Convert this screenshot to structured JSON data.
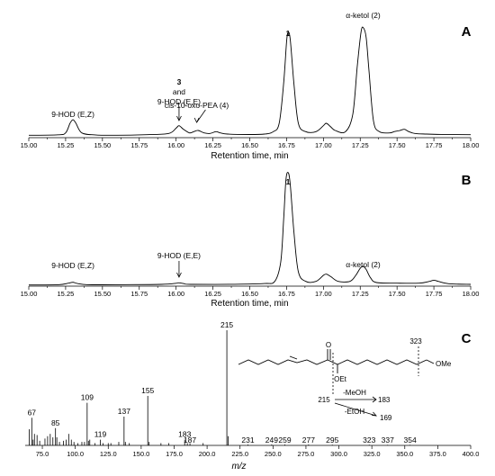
{
  "chart_data": [
    {
      "type": "line",
      "panel_label": "A",
      "xlabel": "Retention time, min",
      "xlim": [
        15.0,
        18.0
      ],
      "x_ticks": [
        "15.00",
        "15.25",
        "15.50",
        "15.75",
        "16.00",
        "16.25",
        "16.50",
        "16.75",
        "17.00",
        "17.25",
        "17.50",
        "17.75",
        "18.00"
      ],
      "ylim": [
        0,
        100
      ],
      "series": [
        {
          "points": [
            [
              15.0,
              2
            ],
            [
              15.2,
              2.4
            ],
            [
              15.25,
              4
            ],
            [
              15.28,
              12
            ],
            [
              15.3,
              15
            ],
            [
              15.32,
              12
            ],
            [
              15.36,
              4
            ],
            [
              15.45,
              2.3
            ],
            [
              15.6,
              2
            ],
            [
              15.8,
              2.5
            ],
            [
              15.95,
              3.5
            ],
            [
              16.0,
              8
            ],
            [
              16.02,
              10
            ],
            [
              16.05,
              7
            ],
            [
              16.09,
              4
            ],
            [
              16.12,
              5
            ],
            [
              16.15,
              6
            ],
            [
              16.19,
              4
            ],
            [
              16.23,
              3.5
            ],
            [
              16.27,
              5
            ],
            [
              16.3,
              4
            ],
            [
              16.35,
              3
            ],
            [
              16.5,
              2.6
            ],
            [
              16.6,
              3
            ],
            [
              16.66,
              5
            ],
            [
              16.7,
              12
            ],
            [
              16.73,
              45
            ],
            [
              16.75,
              80
            ],
            [
              16.76,
              88
            ],
            [
              16.775,
              82
            ],
            [
              16.8,
              45
            ],
            [
              16.83,
              12
            ],
            [
              16.88,
              5
            ],
            [
              16.95,
              5
            ],
            [
              17.0,
              10
            ],
            [
              17.02,
              12
            ],
            [
              17.05,
              9
            ],
            [
              17.08,
              6
            ],
            [
              17.15,
              5
            ],
            [
              17.2,
              20
            ],
            [
              17.23,
              60
            ],
            [
              17.255,
              88
            ],
            [
              17.27,
              92
            ],
            [
              17.29,
              84
            ],
            [
              17.31,
              55
            ],
            [
              17.34,
              14
            ],
            [
              17.38,
              5
            ],
            [
              17.45,
              4
            ],
            [
              17.48,
              5
            ],
            [
              17.52,
              6
            ],
            [
              17.55,
              7
            ],
            [
              17.58,
              5
            ],
            [
              17.62,
              3.5
            ],
            [
              17.7,
              3
            ],
            [
              17.8,
              2.7
            ],
            [
              18.0,
              2.5
            ]
          ]
        }
      ],
      "annotations": [
        {
          "text": "9-HOD (E,Z)",
          "x": 15.3
        },
        {
          "text": "3",
          "x": 16.02
        },
        {
          "text": "and",
          "x": 16.02
        },
        {
          "text": "9-HOD (E,E)",
          "x": 16.02
        },
        {
          "text": "cis-10-oxo-PEA (4)",
          "x": 16.14
        },
        {
          "text": "1",
          "x": 16.76
        },
        {
          "text": "α-ketol (2)",
          "x": 17.27
        }
      ]
    },
    {
      "type": "line",
      "panel_label": "B",
      "xlabel": "Retention time, min",
      "xlim": [
        15.0,
        18.0
      ],
      "x_ticks": [
        "15.00",
        "15.25",
        "15.50",
        "15.75",
        "16.00",
        "16.25",
        "16.50",
        "16.75",
        "17.00",
        "17.25",
        "17.50",
        "17.75",
        "18.00"
      ],
      "ylim": [
        0,
        100
      ],
      "series": [
        {
          "points": [
            [
              15.0,
              1
            ],
            [
              15.2,
              1.2
            ],
            [
              15.27,
              2.5
            ],
            [
              15.3,
              3.2
            ],
            [
              15.33,
              2.2
            ],
            [
              15.4,
              1.2
            ],
            [
              15.6,
              1.2
            ],
            [
              15.9,
              1.5
            ],
            [
              16.0,
              2.4
            ],
            [
              16.02,
              2.8
            ],
            [
              16.05,
              2.2
            ],
            [
              16.1,
              1.5
            ],
            [
              16.4,
              1.6
            ],
            [
              16.6,
              2.2
            ],
            [
              16.67,
              4
            ],
            [
              16.71,
              20
            ],
            [
              16.73,
              55
            ],
            [
              16.745,
              88
            ],
            [
              16.76,
              95
            ],
            [
              16.775,
              85
            ],
            [
              16.8,
              45
            ],
            [
              16.83,
              12
            ],
            [
              16.88,
              4
            ],
            [
              16.95,
              4
            ],
            [
              17.0,
              9
            ],
            [
              17.02,
              10
            ],
            [
              17.05,
              8
            ],
            [
              17.1,
              4
            ],
            [
              17.18,
              4
            ],
            [
              17.22,
              9
            ],
            [
              17.25,
              15
            ],
            [
              17.27,
              16.5
            ],
            [
              17.29,
              14
            ],
            [
              17.32,
              7
            ],
            [
              17.36,
              3
            ],
            [
              17.5,
              2.5
            ],
            [
              17.65,
              2.5
            ],
            [
              17.72,
              4
            ],
            [
              17.75,
              5
            ],
            [
              17.78,
              4
            ],
            [
              17.85,
              2
            ],
            [
              18.0,
              1.5
            ]
          ]
        }
      ],
      "annotations": [
        {
          "text": "9-HOD (E,Z)",
          "x": 15.3
        },
        {
          "text": "9-HOD (E,E)",
          "x": 16.02
        },
        {
          "text": "1",
          "x": 16.76
        },
        {
          "text": "α-ketol (2)",
          "x": 17.27
        }
      ]
    },
    {
      "type": "bar",
      "panel_label": "C",
      "xlabel": "m/z",
      "xlim": [
        62,
        400
      ],
      "x_ticks": [
        "75.0",
        "100.0",
        "125.0",
        "150.0",
        "175.0",
        "200.0",
        "225.0",
        "250.0",
        "275.0",
        "300.0",
        "325.0",
        "350.0",
        "375.0",
        "400.0"
      ],
      "ylim": [
        0,
        100
      ],
      "peaks": [
        [
          65,
          14
        ],
        [
          67,
          24
        ],
        [
          68,
          5
        ],
        [
          69,
          10
        ],
        [
          71,
          9
        ],
        [
          73,
          4
        ],
        [
          77,
          6
        ],
        [
          79,
          8
        ],
        [
          81,
          10
        ],
        [
          83,
          7
        ],
        [
          85,
          15
        ],
        [
          86,
          7
        ],
        [
          88,
          3
        ],
        [
          91,
          4
        ],
        [
          93,
          5
        ],
        [
          95,
          10
        ],
        [
          97,
          5
        ],
        [
          99,
          3
        ],
        [
          102,
          2
        ],
        [
          105,
          3
        ],
        [
          107,
          3
        ],
        [
          109,
          37
        ],
        [
          110,
          4
        ],
        [
          111,
          5
        ],
        [
          115,
          2
        ],
        [
          119,
          5
        ],
        [
          121,
          2
        ],
        [
          125,
          2
        ],
        [
          127,
          2
        ],
        [
          133,
          3
        ],
        [
          137,
          25
        ],
        [
          138,
          3
        ],
        [
          141,
          2
        ],
        [
          155,
          43
        ],
        [
          156,
          3
        ],
        [
          165,
          2
        ],
        [
          171,
          2
        ],
        [
          183,
          5
        ],
        [
          185,
          2
        ],
        [
          187,
          2
        ],
        [
          197,
          2
        ],
        [
          215,
          100
        ],
        [
          216,
          8
        ],
        [
          231,
          0.8
        ],
        [
          249,
          0.8
        ],
        [
          259,
          0.8
        ],
        [
          277,
          0.8
        ],
        [
          295,
          0.6
        ],
        [
          323,
          0.6
        ],
        [
          337,
          0.5
        ],
        [
          354,
          0.5
        ]
      ],
      "peak_labels": [
        {
          "text": "67",
          "mz": 67
        },
        {
          "text": "85",
          "mz": 85
        },
        {
          "text": "109",
          "mz": 109
        },
        {
          "text": "119",
          "mz": 119
        },
        {
          "text": "137",
          "mz": 137
        },
        {
          "text": "155",
          "mz": 155
        },
        {
          "text": "183",
          "mz": 183
        },
        {
          "text": "187",
          "mz": 187
        },
        {
          "text": "215",
          "mz": 215
        },
        {
          "text": "231",
          "mz": 231
        },
        {
          "text": "249",
          "mz": 249
        },
        {
          "text": "259",
          "mz": 259
        },
        {
          "text": "277",
          "mz": 277
        },
        {
          "text": "295",
          "mz": 295
        },
        {
          "text": "323",
          "mz": 323
        },
        {
          "text": "337",
          "mz": 337
        },
        {
          "text": "354",
          "mz": 354
        }
      ],
      "structure_labels": {
        "o_ketone": "O",
        "oet": "OEt",
        "ome": "OMe",
        "frag_323": "323",
        "frag_215": "215",
        "loss_meoh": "-MeOH",
        "ion_183": "183",
        "loss_etoh": "-EtOH",
        "ion_169": "169"
      }
    }
  ]
}
